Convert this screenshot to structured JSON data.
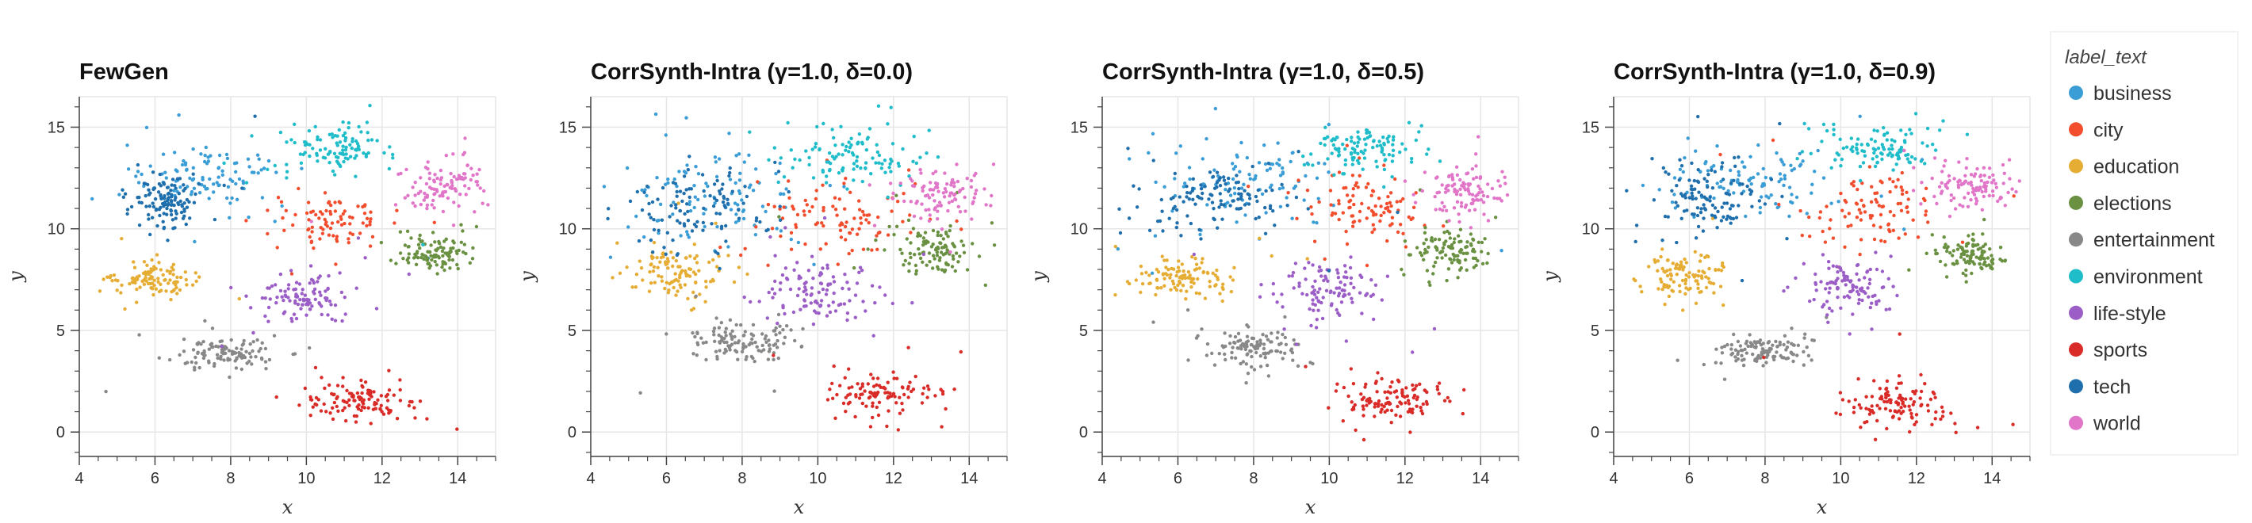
{
  "chart_data": {
    "type": "scatter",
    "xlabel": "x",
    "ylabel": "y",
    "xlim": [
      4,
      15
    ],
    "ylim": [
      -1.2,
      16.5
    ],
    "x_ticks": [
      4,
      6,
      8,
      10,
      12,
      14
    ],
    "y_ticks": [
      0,
      5,
      10,
      15
    ],
    "grid": true,
    "legend": {
      "title": "label_text",
      "placement": "right",
      "entries": [
        {
          "label": "business",
          "color": "#3a9dd6"
        },
        {
          "label": "city",
          "color": "#f24e2e"
        },
        {
          "label": "education",
          "color": "#e6ad35"
        },
        {
          "label": "elections",
          "color": "#6a9142"
        },
        {
          "label": "entertainment",
          "color": "#888888"
        },
        {
          "label": "environment",
          "color": "#1fbcc9"
        },
        {
          "label": "life-style",
          "color": "#9b5ec7"
        },
        {
          "label": "sports",
          "color": "#d92b27"
        },
        {
          "label": "tech",
          "color": "#1f6fad"
        },
        {
          "label": "world",
          "color": "#e176c9"
        }
      ]
    },
    "panels": [
      {
        "title": "FewGen",
        "clusters": [
          {
            "label": "business",
            "center": [
              7.4,
              12.6
            ],
            "spread": [
              1.0,
              0.8
            ],
            "n": 110
          },
          {
            "label": "city",
            "center": [
              10.7,
              10.3
            ],
            "spread": [
              0.7,
              0.6
            ],
            "n": 90
          },
          {
            "label": "education",
            "center": [
              5.9,
              7.5
            ],
            "spread": [
              0.5,
              0.4
            ],
            "n": 110
          },
          {
            "label": "elections",
            "center": [
              13.4,
              8.8
            ],
            "spread": [
              0.5,
              0.5
            ],
            "n": 110
          },
          {
            "label": "entertainment",
            "center": [
              7.9,
              3.9
            ],
            "spread": [
              0.6,
              0.4
            ],
            "n": 120
          },
          {
            "label": "environment",
            "center": [
              10.6,
              13.9
            ],
            "spread": [
              0.7,
              0.6
            ],
            "n": 110
          },
          {
            "label": "life-style",
            "center": [
              10.0,
              6.7
            ],
            "spread": [
              0.6,
              0.6
            ],
            "n": 110
          },
          {
            "label": "sports",
            "center": [
              11.4,
              1.6
            ],
            "spread": [
              0.7,
              0.5
            ],
            "n": 120
          },
          {
            "label": "tech",
            "center": [
              6.3,
              11.3
            ],
            "spread": [
              0.5,
              0.7
            ],
            "n": 120
          },
          {
            "label": "world",
            "center": [
              13.6,
              12.1
            ],
            "spread": [
              0.5,
              0.6
            ],
            "n": 110
          }
        ]
      },
      {
        "title": "CorrSynth-Intra (γ=1.0, δ=0.0)",
        "clusters": [
          {
            "label": "business",
            "center": [
              7.2,
              11.7
            ],
            "spread": [
              1.3,
              1.2
            ],
            "n": 110
          },
          {
            "label": "city",
            "center": [
              10.6,
              10.4
            ],
            "spread": [
              1.2,
              1.0
            ],
            "n": 100
          },
          {
            "label": "education",
            "center": [
              6.3,
              7.8
            ],
            "spread": [
              0.7,
              0.6
            ],
            "n": 110
          },
          {
            "label": "elections",
            "center": [
              13.1,
              9.0
            ],
            "spread": [
              0.6,
              0.6
            ],
            "n": 110
          },
          {
            "label": "entertainment",
            "center": [
              7.9,
              4.5
            ],
            "spread": [
              0.7,
              0.5
            ],
            "n": 120
          },
          {
            "label": "environment",
            "center": [
              10.8,
              13.7
            ],
            "spread": [
              0.9,
              0.8
            ],
            "n": 110
          },
          {
            "label": "life-style",
            "center": [
              9.9,
              7.0
            ],
            "spread": [
              0.8,
              0.8
            ],
            "n": 110
          },
          {
            "label": "sports",
            "center": [
              11.6,
              1.8
            ],
            "spread": [
              0.7,
              0.5
            ],
            "n": 110
          },
          {
            "label": "tech",
            "center": [
              7.0,
              11.0
            ],
            "spread": [
              1.0,
              1.1
            ],
            "n": 110
          },
          {
            "label": "world",
            "center": [
              13.3,
              11.6
            ],
            "spread": [
              0.7,
              0.7
            ],
            "n": 100
          }
        ]
      },
      {
        "title": "CorrSynth-Intra (γ=1.0, δ=0.5)",
        "clusters": [
          {
            "label": "business",
            "center": [
              7.8,
              12.3
            ],
            "spread": [
              1.2,
              1.0
            ],
            "n": 110
          },
          {
            "label": "city",
            "center": [
              10.8,
              10.9
            ],
            "spread": [
              0.9,
              0.9
            ],
            "n": 100
          },
          {
            "label": "education",
            "center": [
              6.1,
              7.6
            ],
            "spread": [
              0.6,
              0.5
            ],
            "n": 110
          },
          {
            "label": "elections",
            "center": [
              13.2,
              8.9
            ],
            "spread": [
              0.5,
              0.5
            ],
            "n": 110
          },
          {
            "label": "entertainment",
            "center": [
              8.0,
              4.2
            ],
            "spread": [
              0.6,
              0.4
            ],
            "n": 120
          },
          {
            "label": "environment",
            "center": [
              10.9,
              14.0
            ],
            "spread": [
              0.8,
              0.6
            ],
            "n": 110
          },
          {
            "label": "life-style",
            "center": [
              9.8,
              7.0
            ],
            "spread": [
              0.7,
              0.7
            ],
            "n": 110
          },
          {
            "label": "sports",
            "center": [
              11.6,
              1.6
            ],
            "spread": [
              0.7,
              0.5
            ],
            "n": 120
          },
          {
            "label": "tech",
            "center": [
              7.0,
              11.5
            ],
            "spread": [
              0.9,
              0.9
            ],
            "n": 120
          },
          {
            "label": "world",
            "center": [
              13.6,
              11.9
            ],
            "spread": [
              0.6,
              0.6
            ],
            "n": 110
          }
        ]
      },
      {
        "title": "CorrSynth-Intra (γ=1.0, δ=0.9)",
        "clusters": [
          {
            "label": "business",
            "center": [
              7.7,
              12.4
            ],
            "spread": [
              1.1,
              0.9
            ],
            "n": 110
          },
          {
            "label": "city",
            "center": [
              11.0,
              10.9
            ],
            "spread": [
              0.9,
              0.9
            ],
            "n": 100
          },
          {
            "label": "education",
            "center": [
              5.9,
              7.6
            ],
            "spread": [
              0.5,
              0.5
            ],
            "n": 110
          },
          {
            "label": "elections",
            "center": [
              13.5,
              8.8
            ],
            "spread": [
              0.4,
              0.5
            ],
            "n": 110
          },
          {
            "label": "entertainment",
            "center": [
              7.9,
              4.0
            ],
            "spread": [
              0.6,
              0.4
            ],
            "n": 120
          },
          {
            "label": "environment",
            "center": [
              11.1,
              14.0
            ],
            "spread": [
              0.8,
              0.6
            ],
            "n": 110
          },
          {
            "label": "life-style",
            "center": [
              10.2,
              7.1
            ],
            "spread": [
              0.6,
              0.7
            ],
            "n": 110
          },
          {
            "label": "sports",
            "center": [
              11.4,
              1.4
            ],
            "spread": [
              0.7,
              0.5
            ],
            "n": 120
          },
          {
            "label": "tech",
            "center": [
              6.6,
              11.6
            ],
            "spread": [
              0.7,
              0.8
            ],
            "n": 120
          },
          {
            "label": "world",
            "center": [
              13.6,
              12.1
            ],
            "spread": [
              0.6,
              0.6
            ],
            "n": 110
          }
        ]
      }
    ]
  }
}
